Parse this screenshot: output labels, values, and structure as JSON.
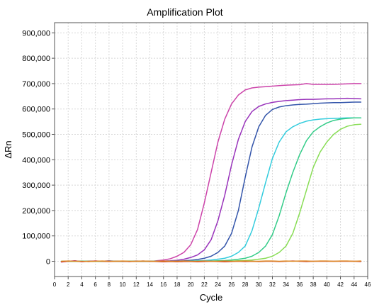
{
  "chart_data": {
    "type": "line",
    "title": "Amplification Plot",
    "xlabel": "Cycle",
    "ylabel": "ΔRn",
    "xlim": [
      0,
      46
    ],
    "ylim": [
      -60000,
      940000
    ],
    "grid": true,
    "x_ticks": [
      "0",
      "2",
      "4",
      "6",
      "8",
      "10",
      "12",
      "14",
      "16",
      "18",
      "20",
      "22",
      "24",
      "26",
      "28",
      "30",
      "32",
      "34",
      "36",
      "38",
      "40",
      "42",
      "44",
      "46"
    ],
    "y_ticks": [
      "0",
      "100,000",
      "200,000",
      "300,000",
      "400,000",
      "500,000",
      "600,000",
      "700,000",
      "800,000",
      "900,000"
    ],
    "x": [
      1,
      2,
      3,
      4,
      5,
      6,
      7,
      8,
      9,
      10,
      11,
      12,
      13,
      14,
      15,
      16,
      17,
      18,
      19,
      20,
      21,
      22,
      23,
      24,
      25,
      26,
      27,
      28,
      29,
      30,
      31,
      32,
      33,
      34,
      35,
      36,
      37,
      38,
      39,
      40,
      41,
      42,
      43,
      44,
      45
    ],
    "series": [
      {
        "color": "#cc44aa",
        "values": [
          -3000,
          0,
          2000,
          -2000,
          0,
          1000,
          0,
          2000,
          0,
          -1000,
          0,
          1000,
          0,
          -1000,
          2000,
          5000,
          10000,
          20000,
          35000,
          65000,
          125000,
          230000,
          350000,
          470000,
          560000,
          620000,
          655000,
          675000,
          683000,
          686000,
          688000,
          690000,
          692000,
          694000,
          695000,
          696000,
          700000,
          697000,
          697000,
          697000,
          697000,
          698000,
          699000,
          700000,
          700000
        ]
      },
      {
        "color": "#9933bb",
        "values": [
          -2000,
          1000,
          0,
          -1000,
          0,
          1000,
          0,
          1000,
          0,
          0,
          -1000,
          0,
          1000,
          0,
          0,
          1000,
          2000,
          4000,
          8000,
          15000,
          25000,
          45000,
          85000,
          160000,
          260000,
          380000,
          480000,
          550000,
          590000,
          610000,
          620000,
          626000,
          630000,
          633000,
          635000,
          637000,
          638000,
          638000,
          639000,
          640000,
          640000,
          641000,
          642000,
          641000,
          640000
        ]
      },
      {
        "color": "#3355aa",
        "values": [
          -1000,
          0,
          1000,
          0,
          -1000,
          0,
          0,
          1000,
          0,
          0,
          0,
          0,
          0,
          0,
          0,
          0,
          500,
          1000,
          2000,
          4000,
          7000,
          12000,
          20000,
          35000,
          60000,
          110000,
          200000,
          330000,
          450000,
          530000,
          575000,
          598000,
          608000,
          613000,
          616000,
          618000,
          619000,
          621000,
          623000,
          624000,
          625000,
          625000,
          626000,
          627000,
          627000
        ]
      },
      {
        "color": "#33ccdd",
        "values": [
          -1000,
          0,
          0,
          1000,
          0,
          0,
          0,
          0,
          0,
          0,
          0,
          0,
          0,
          0,
          0,
          0,
          0,
          0,
          0,
          1000,
          2000,
          3000,
          5000,
          8000,
          12000,
          20000,
          35000,
          60000,
          120000,
          210000,
          310000,
          405000,
          470000,
          510000,
          530000,
          543000,
          552000,
          557000,
          560000,
          562000,
          563000,
          564000,
          565000,
          565000,
          565000
        ]
      },
      {
        "color": "#33cc88",
        "values": [
          0,
          0,
          0,
          0,
          0,
          0,
          0,
          0,
          0,
          0,
          0,
          0,
          0,
          0,
          0,
          0,
          0,
          0,
          0,
          0,
          0,
          500,
          1000,
          2000,
          3000,
          5000,
          8000,
          12000,
          20000,
          35000,
          60000,
          105000,
          180000,
          270000,
          350000,
          420000,
          475000,
          510000,
          530000,
          545000,
          555000,
          560000,
          563000,
          565000,
          565000
        ]
      },
      {
        "color": "#88dd55",
        "values": [
          0,
          0,
          0,
          0,
          0,
          0,
          0,
          0,
          0,
          0,
          0,
          0,
          0,
          0,
          0,
          0,
          0,
          0,
          0,
          0,
          0,
          0,
          0,
          0,
          500,
          1000,
          2000,
          3000,
          5000,
          8000,
          12000,
          20000,
          35000,
          60000,
          110000,
          190000,
          280000,
          370000,
          430000,
          470000,
          500000,
          520000,
          532000,
          538000,
          540000
        ]
      },
      {
        "color": "#cc3333",
        "values": [
          -2000,
          0,
          1000,
          -1000,
          0,
          1000,
          0,
          -1000,
          0,
          0,
          -1000,
          0,
          0,
          0,
          -1000,
          -2000,
          -1000,
          -2000,
          -1000,
          -1000,
          -2000,
          -1000,
          0,
          -1000,
          -2000,
          -1000,
          0,
          -1000,
          0,
          -1000,
          0,
          0,
          -1000,
          0,
          1000,
          0,
          -1000,
          0,
          0,
          0,
          0,
          0,
          0,
          0,
          -1000
        ]
      },
      {
        "color": "#dd8822",
        "values": [
          0,
          1000,
          0,
          0,
          -1000,
          0,
          1000,
          0,
          0,
          1000,
          0,
          0,
          1000,
          0,
          0,
          1000,
          0,
          0,
          1000,
          0,
          0,
          1000,
          0,
          0,
          1000,
          0,
          0,
          1000,
          0,
          0,
          1000,
          1000,
          0,
          1000,
          0,
          1000,
          1000,
          0,
          1000,
          1000,
          0,
          1000,
          1000,
          0,
          1000
        ]
      }
    ]
  }
}
